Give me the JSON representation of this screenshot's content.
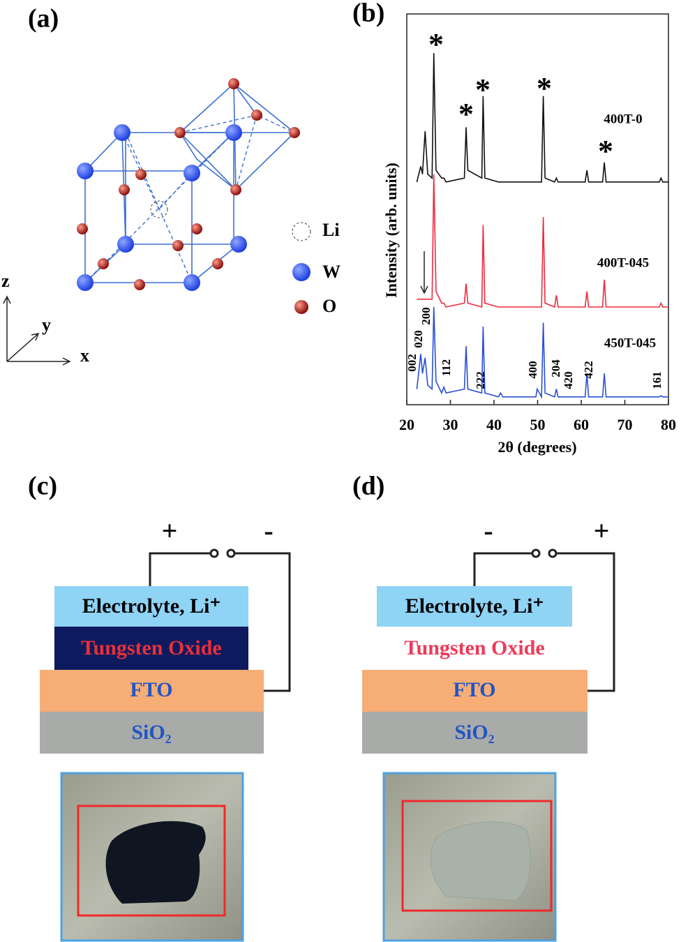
{
  "panel_labels": [
    "(a)",
    "(b)",
    "(c)",
    "(d)"
  ],
  "structure": {
    "legend": [
      "Li",
      "W",
      "O"
    ],
    "axes": [
      "z",
      "y",
      "x"
    ]
  },
  "chart_data": {
    "type": "line",
    "xlabel": "2θ (degrees)",
    "ylabel": "Intensity (arb. units)",
    "x": [
      22.3,
      23.2,
      23.6,
      24.2,
      24.8,
      25.8,
      26.2,
      26.7,
      28.0,
      28.5,
      29.0,
      33.2,
      33.6,
      34.0,
      37.2,
      37.5,
      37.9,
      41.0,
      41.5,
      42.0,
      49.6,
      49.9,
      50.9,
      51.3,
      51.7,
      53.9,
      54.3,
      54.7,
      60.9,
      61.3,
      61.7,
      64.9,
      65.3,
      65.7,
      77.9,
      78.3,
      78.7,
      80
    ],
    "xlim": [
      20,
      80
    ],
    "xticks": [
      20,
      30,
      40,
      50,
      60,
      70,
      80
    ],
    "ylim": [
      0,
      100
    ],
    "series": [
      {
        "name": "400T-0",
        "color": "#111111",
        "values": [
          57,
          61,
          59,
          70,
          59,
          58,
          90,
          60,
          58,
          58,
          57,
          58,
          71,
          60,
          58,
          79,
          58,
          57,
          57,
          57,
          57,
          57,
          57,
          79,
          58,
          57,
          58,
          57,
          57,
          60,
          57,
          57,
          62,
          57,
          57,
          58,
          57,
          57
        ]
      },
      {
        "name": "400T-045",
        "color": "#ee2a3c",
        "values": [
          27,
          27,
          27,
          27,
          27,
          27,
          59,
          29,
          26,
          26,
          25,
          26,
          31,
          26,
          25,
          46,
          26,
          25,
          25,
          25,
          25,
          25,
          25,
          48,
          26,
          25,
          28,
          25,
          25,
          29,
          25,
          25,
          32,
          25,
          25,
          26,
          25,
          25
        ]
      },
      {
        "name": "450T-045",
        "color": "#2a4fd8",
        "values": [
          4,
          13,
          8,
          12,
          5,
          4,
          25,
          6,
          3,
          4.5,
          3,
          4,
          15,
          4,
          3,
          20,
          3,
          2,
          3,
          2,
          2,
          4,
          2,
          21,
          3,
          2,
          4,
          2,
          2,
          8,
          2,
          2,
          8,
          2,
          2,
          2.3,
          2,
          2
        ]
      }
    ],
    "peak_marks": [
      "*",
      "*",
      "*",
      "*",
      "*"
    ],
    "peak_labels": [
      "002",
      "020",
      "200",
      "112",
      "222",
      "400",
      "204",
      "420",
      "422",
      "161"
    ]
  },
  "device_c": {
    "plus": "+",
    "minus": "-",
    "electrolyte": "Electrolyte, Li⁺",
    "oxide": "Tungsten Oxide",
    "fto": "FTO",
    "substrate": "SiO₂"
  },
  "device_d": {
    "plus": "+",
    "minus": "-",
    "electrolyte": "Electrolyte, Li⁺",
    "oxide": "Tungsten Oxide",
    "fto": "FTO",
    "substrate": "SiO₂"
  }
}
